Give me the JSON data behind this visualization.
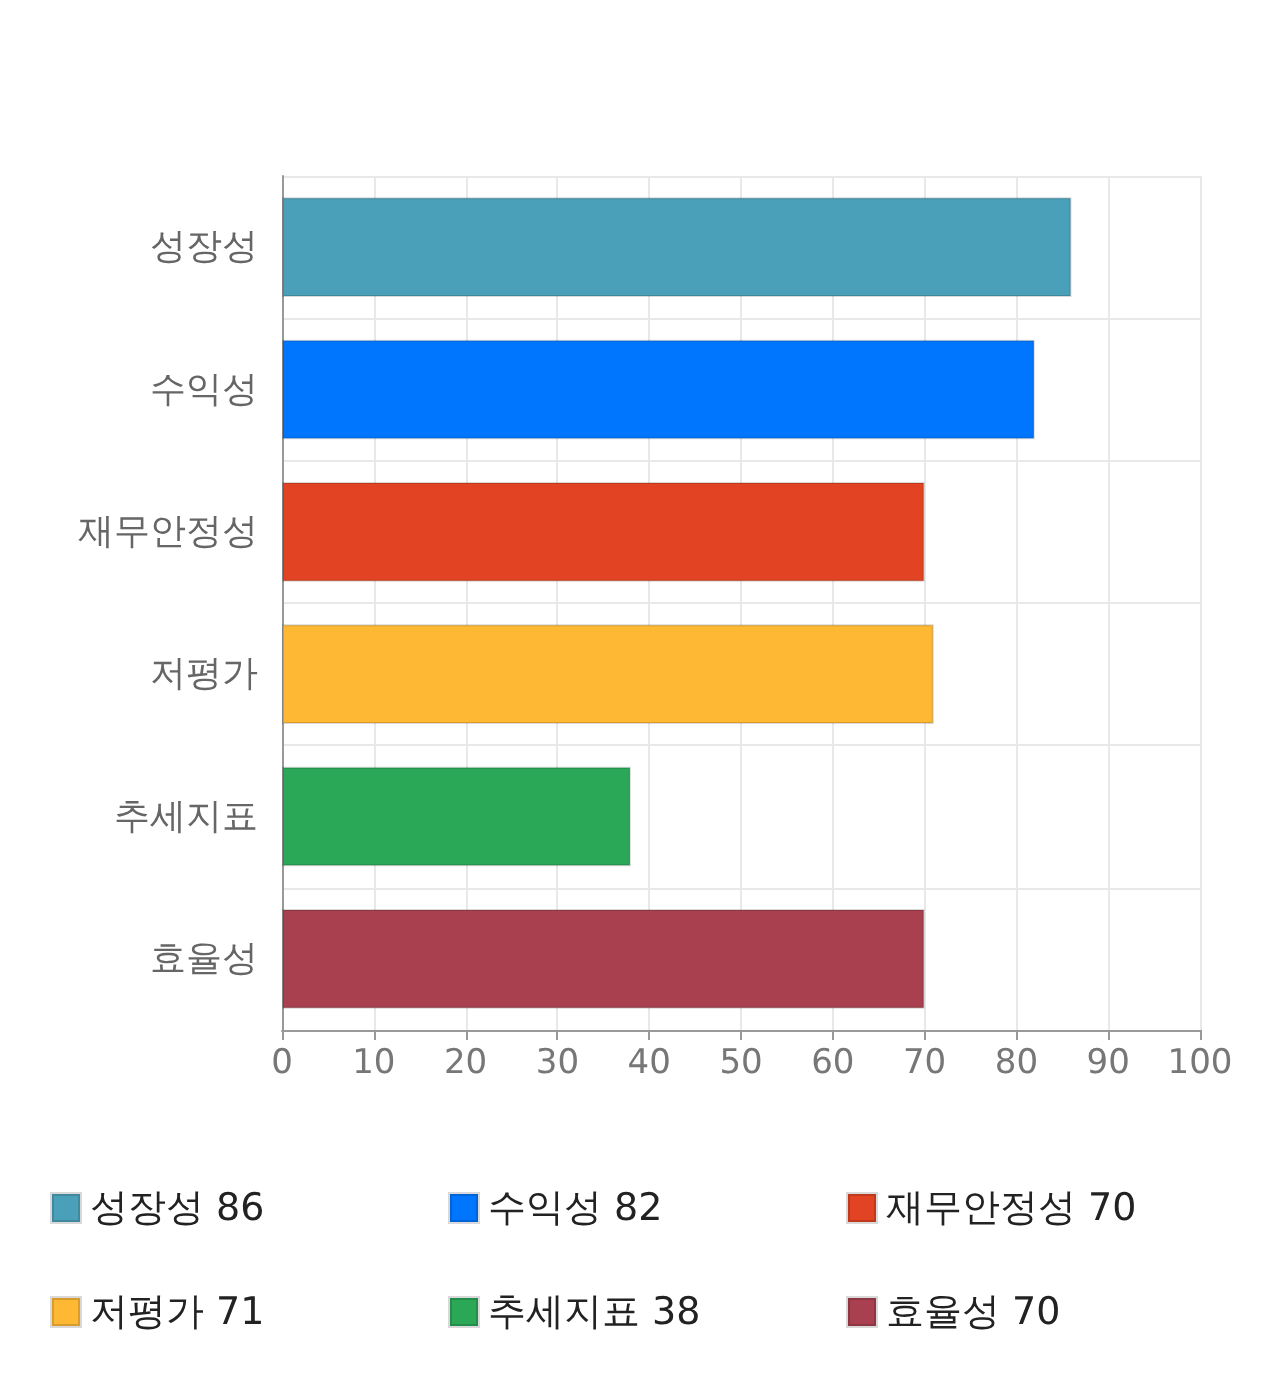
{
  "chart_data": {
    "type": "bar",
    "orientation": "horizontal",
    "categories": [
      "성장성",
      "수익성",
      "재무안정성",
      "저평가",
      "추세지표",
      "효율성"
    ],
    "series": [
      {
        "name": "성장성 86",
        "color": "#4aa0b9",
        "values": [
          86,
          null,
          null,
          null,
          null,
          null
        ]
      },
      {
        "name": "수익성 82",
        "color": "#0076ff",
        "values": [
          null,
          82,
          null,
          null,
          null,
          null
        ]
      },
      {
        "name": "재무안정성 70",
        "color": "#e24423",
        "values": [
          null,
          null,
          70,
          null,
          null,
          null
        ]
      },
      {
        "name": "저평가 71",
        "color": "#ffb833",
        "values": [
          null,
          null,
          null,
          71,
          null,
          null
        ]
      },
      {
        "name": "추세지표 38",
        "color": "#2aa757",
        "values": [
          null,
          null,
          null,
          null,
          38,
          null
        ]
      },
      {
        "name": "효율성 70",
        "color": "#a8404f",
        "values": [
          null,
          null,
          null,
          null,
          null,
          70
        ]
      }
    ],
    "xlim": [
      0,
      100
    ],
    "xticks": [
      0,
      10,
      20,
      30,
      40,
      50,
      60,
      70,
      80,
      90,
      100
    ],
    "grid": true,
    "legend": "bottom"
  }
}
